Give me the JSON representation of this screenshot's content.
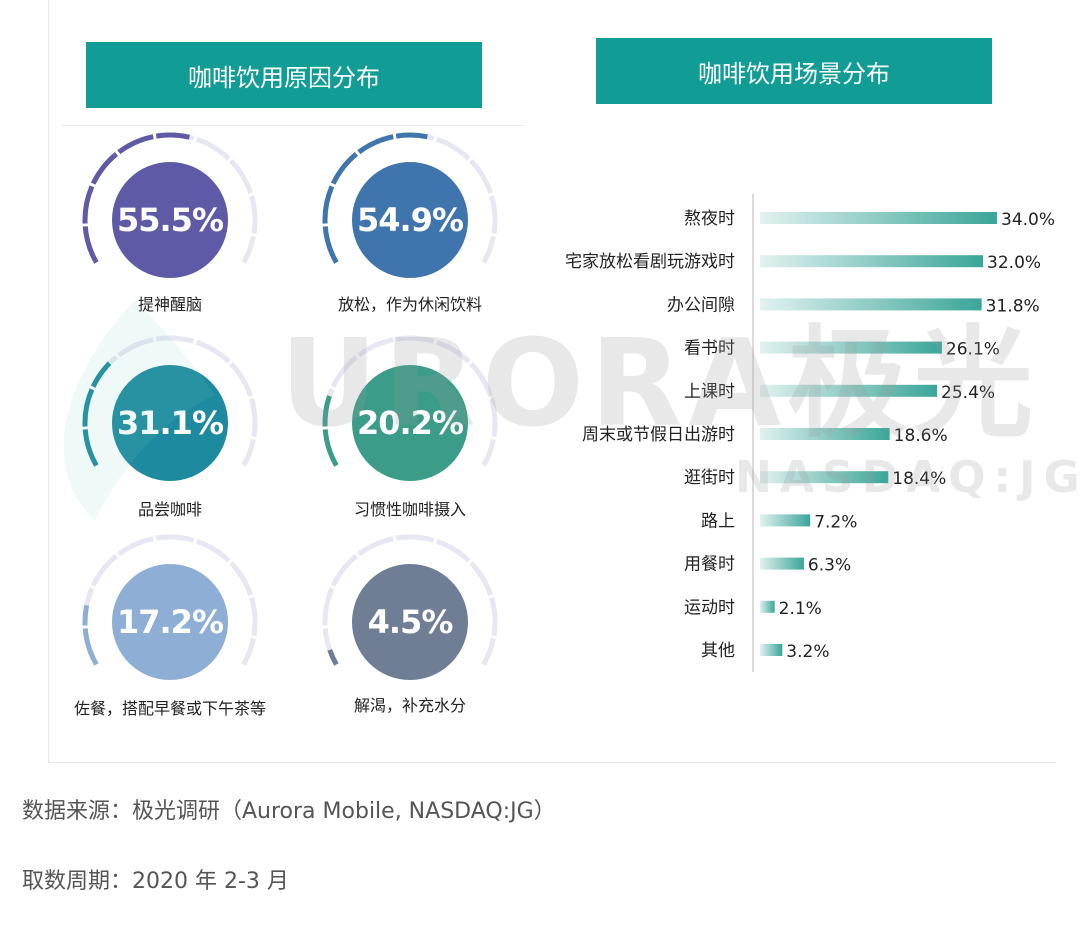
{
  "left_panel": {
    "title": "咖啡饮用原因分布"
  },
  "right_panel": {
    "title": "咖啡饮用场景分布"
  },
  "watermark": {
    "brand": "URORA极光",
    "ticker": "NASDAQ:JG"
  },
  "footer": {
    "source": "数据来源：极光调研（Aurora Mobile, NASDAQ:JG）",
    "period": "取数周期：2020 年 2-3 月"
  },
  "chart_data": [
    {
      "type": "gauge",
      "items": [
        {
          "label": "提神醒脑",
          "value": 55.5,
          "display": "55.5%",
          "color": "#5e5aa5"
        },
        {
          "label": "放松，作为休闲饮料",
          "value": 54.9,
          "display": "54.9%",
          "color": "#3f74ad"
        },
        {
          "label": "品尝咖啡",
          "value": 31.1,
          "display": "31.1%",
          "color": "#1d8aa0"
        },
        {
          "label": "习惯性咖啡摄入",
          "value": 20.2,
          "display": "20.2%",
          "color": "#3a9c89"
        },
        {
          "label": "佐餐，搭配早餐或下午茶等",
          "value": 17.2,
          "display": "17.2%",
          "color": "#8eaed6"
        },
        {
          "label": "解渴，补充水分",
          "value": 4.5,
          "display": "4.5%",
          "color": "#6f7e95"
        }
      ]
    },
    {
      "type": "bar",
      "orientation": "horizontal",
      "categories": [
        "熬夜时",
        "宅家放松看剧玩游戏时",
        "办公间隙",
        "看书时",
        "上课时",
        "周末或节假日出游时",
        "逛街时",
        "路上",
        "用餐时",
        "运动时",
        "其他"
      ],
      "values": [
        34.0,
        32.0,
        31.8,
        26.1,
        25.4,
        18.6,
        18.4,
        7.2,
        6.3,
        2.1,
        3.2
      ],
      "value_labels": [
        "34.0%",
        "32.0%",
        "31.8%",
        "26.1%",
        "25.4%",
        "18.6%",
        "18.4%",
        "7.2%",
        "6.3%",
        "2.1%",
        "3.2%"
      ],
      "xlim": [
        0,
        34
      ],
      "bar_color": "#3aa598"
    }
  ]
}
